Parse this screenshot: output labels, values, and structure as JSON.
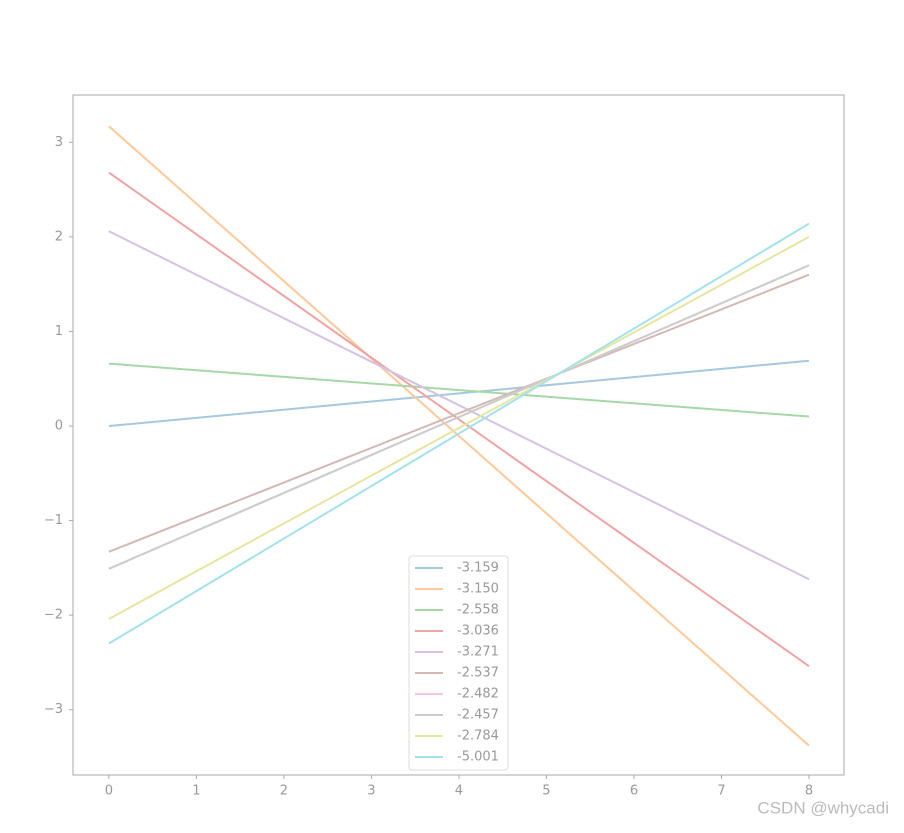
{
  "chart_data": {
    "type": "line",
    "x": [
      0,
      8
    ],
    "series": [
      {
        "name": "-3.159",
        "color": "#a6c8e0",
        "values": [
          0.0,
          0.69
        ]
      },
      {
        "name": "-3.150",
        "color": "#ffc999",
        "values": [
          3.17,
          -3.38
        ]
      },
      {
        "name": "-2.558",
        "color": "#a5d8a5",
        "values": [
          0.66,
          0.1
        ]
      },
      {
        "name": "-3.036",
        "color": "#f0a3a3",
        "values": [
          2.68,
          -2.54
        ]
      },
      {
        "name": "-3.271",
        "color": "#d4c2e4",
        "values": [
          2.06,
          -1.62
        ]
      },
      {
        "name": "-2.537",
        "color": "#d2b9b4",
        "values": [
          -1.33,
          1.6
        ]
      },
      {
        "name": "-2.482",
        "color": "#f5c6e6",
        "values": [
          -1.51,
          1.7
        ]
      },
      {
        "name": "-2.457",
        "color": "#cccccc",
        "values": [
          -1.51,
          1.7
        ]
      },
      {
        "name": "-2.784",
        "color": "#e6e6a0",
        "values": [
          -2.04,
          2.0
        ]
      },
      {
        "name": "-5.001",
        "color": "#a3e2ea",
        "values": [
          -2.3,
          2.14
        ]
      }
    ],
    "xlim": [
      -0.41,
      8.4
    ],
    "ylim": [
      -3.69,
      3.5
    ],
    "xticks": [
      0,
      1,
      2,
      3,
      4,
      5,
      6,
      7,
      8
    ],
    "yticks": [
      {
        "value": -3,
        "label": "−3"
      },
      {
        "value": -2,
        "label": "−2"
      },
      {
        "value": -1,
        "label": "−1"
      },
      0,
      1,
      2,
      3
    ],
    "legend": "lower-center",
    "watermark": "CSDN @whycadi"
  }
}
